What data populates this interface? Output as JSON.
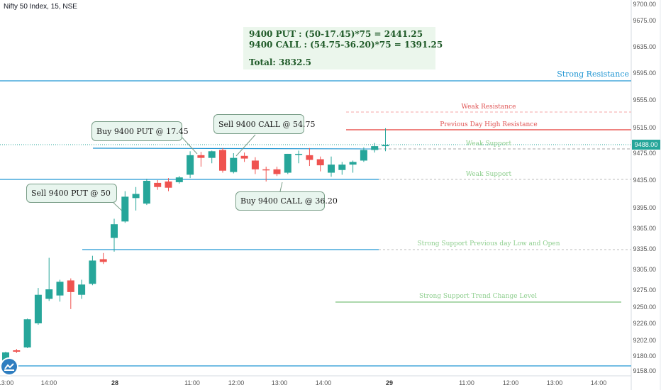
{
  "header": {
    "symbol_title": "Nifty 50 Index, 15, NSE"
  },
  "colors": {
    "up": "#26a69a",
    "down": "#ef5350",
    "blue_line": "#2196d3",
    "red_line": "#e53935",
    "green_text": "#8fcf8f",
    "axis_text": "#555555"
  },
  "calc_box": {
    "line1": "9400 PUT : (50-17.45)*75 = 2441.25",
    "line2": "9400 CALL : (54.75-36.20)*75 = 1391.25",
    "total": "Total: 3832.5"
  },
  "callouts": {
    "sell_put": "Sell 9400 PUT @ 50",
    "buy_put": "Buy 9400 PUT @ 17.45",
    "sell_call": "Sell 9400 CALL @ 54.75",
    "buy_call": "Buy 9400 CALL @ 36.20"
  },
  "levels": {
    "strong_resistance": "Strong Resistance",
    "weak_resistance": "Weak Resistance",
    "prev_day_high": "Previous Day High Resistance",
    "weak_support_1": "Weak Support",
    "weak_support_2": "Weak Support",
    "strong_support_prev": "Strong Support  Previous day Low and Open",
    "strong_support_trend": "Strong Support Trend Change Level"
  },
  "chart_data": {
    "type": "candlestick",
    "y_axis": {
      "ticks": [
        9700,
        9675,
        9635,
        9595,
        9555,
        9515,
        9475,
        9435,
        9395,
        9365,
        9335,
        9305,
        9275,
        9250,
        9226,
        9202,
        9180,
        9158
      ],
      "tick_labels": [
        "9700.00",
        "9675.00",
        "9635.00",
        "9595.00",
        "9555.00",
        "9515.00",
        "9475.00",
        "9435.00",
        "9395.00",
        "9365.00",
        "9335.00",
        "9305.00",
        "9275.00",
        "9250.00",
        "9226.00",
        "9202.00",
        "9180.00",
        "9158.00"
      ]
    },
    "x_axis": {
      "labels": [
        "13:00",
        "14:00",
        "28",
        "11:00",
        "12:00",
        "13:00",
        "14:00",
        "29",
        "11:00",
        "12:00",
        "13:00",
        "14:00"
      ]
    },
    "last_price": {
      "value": 9488,
      "label": "9488.00"
    },
    "candles": [
      {
        "o": 9168,
        "h": 9186,
        "l": 9160,
        "c": 9185
      },
      {
        "o": 9188,
        "h": 9190,
        "l": 9184,
        "c": 9186
      },
      {
        "o": 9192,
        "h": 9233,
        "l": 9191,
        "c": 9232
      },
      {
        "o": 9226,
        "h": 9278,
        "l": 9224,
        "c": 9268
      },
      {
        "o": 9262,
        "h": 9322,
        "l": 9259,
        "c": 9276
      },
      {
        "o": 9267,
        "h": 9290,
        "l": 9258,
        "c": 9287
      },
      {
        "o": 9289,
        "h": 9292,
        "l": 9247,
        "c": 9272
      },
      {
        "o": 9268,
        "h": 9290,
        "l": 9262,
        "c": 9283
      },
      {
        "o": 9284,
        "h": 9325,
        "l": 9282,
        "c": 9318
      },
      {
        "o": 9320,
        "h": 9329,
        "l": 9313,
        "c": 9316
      },
      {
        "o": 9351,
        "h": 9379,
        "l": 9331,
        "c": 9371
      },
      {
        "o": 9375,
        "h": 9419,
        "l": 9373,
        "c": 9411
      },
      {
        "o": 9409,
        "h": 9425,
        "l": 9391,
        "c": 9415
      },
      {
        "o": 9401,
        "h": 9437,
        "l": 9399,
        "c": 9434
      },
      {
        "o": 9431,
        "h": 9435,
        "l": 9421,
        "c": 9425
      },
      {
        "o": 9433,
        "h": 9438,
        "l": 9419,
        "c": 9424
      },
      {
        "o": 9432,
        "h": 9441,
        "l": 9430,
        "c": 9439
      },
      {
        "o": 9443,
        "h": 9478,
        "l": 9438,
        "c": 9472
      },
      {
        "o": 9472,
        "h": 9477,
        "l": 9455,
        "c": 9468
      },
      {
        "o": 9468,
        "h": 9479,
        "l": 9460,
        "c": 9478
      },
      {
        "o": 9480,
        "h": 9483,
        "l": 9446,
        "c": 9449
      },
      {
        "o": 9447,
        "h": 9475,
        "l": 9445,
        "c": 9468
      },
      {
        "o": 9471,
        "h": 9476,
        "l": 9462,
        "c": 9467
      },
      {
        "o": 9464,
        "h": 9469,
        "l": 9444,
        "c": 9451
      },
      {
        "o": 9451,
        "h": 9455,
        "l": 9433,
        "c": 9450
      },
      {
        "o": 9451,
        "h": 9455,
        "l": 9441,
        "c": 9444
      },
      {
        "o": 9446,
        "h": 9474,
        "l": 9444,
        "c": 9474
      },
      {
        "o": 9473,
        "h": 9479,
        "l": 9460,
        "c": 9474
      },
      {
        "o": 9472,
        "h": 9483,
        "l": 9456,
        "c": 9465
      },
      {
        "o": 9466,
        "h": 9470,
        "l": 9448,
        "c": 9457
      },
      {
        "o": 9446,
        "h": 9470,
        "l": 9440,
        "c": 9458
      },
      {
        "o": 9450,
        "h": 9462,
        "l": 9443,
        "c": 9458
      },
      {
        "o": 9458,
        "h": 9464,
        "l": 9446,
        "c": 9462
      },
      {
        "o": 9464,
        "h": 9484,
        "l": 9462,
        "c": 9480
      },
      {
        "o": 9480,
        "h": 9491,
        "l": 9476,
        "c": 9486
      },
      {
        "o": 9486,
        "h": 9514,
        "l": 9478,
        "c": 9488
      }
    ]
  }
}
